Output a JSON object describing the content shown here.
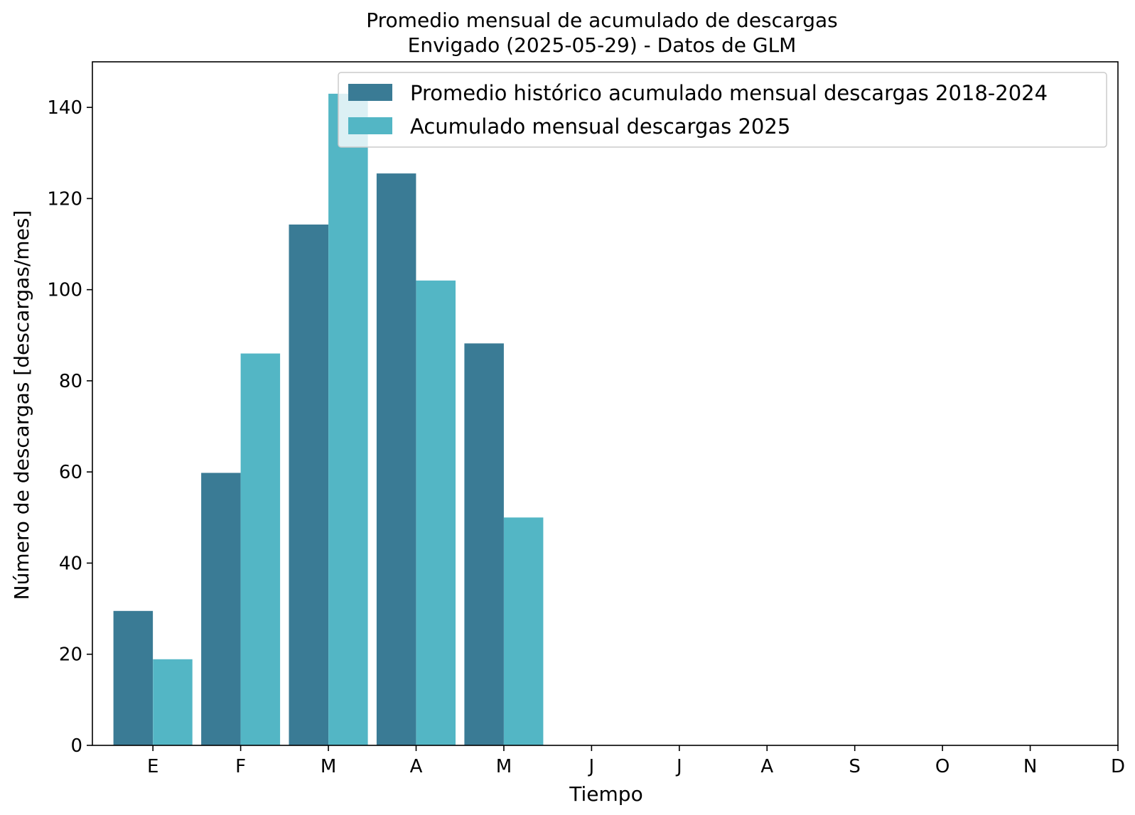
{
  "chart_data": {
    "type": "bar",
    "title": "Promedio mensual de acumulado de descargas",
    "subtitle": "Envigado (2025-05-29) - Datos de GLM",
    "xlabel": "Tiempo",
    "ylabel": "Número de descargas [descargas/mes]",
    "categories": [
      "E",
      "F",
      "M",
      "A",
      "M",
      "J",
      "J",
      "A",
      "S",
      "O",
      "N",
      "D"
    ],
    "ylim": [
      0,
      150
    ],
    "yticks": [
      0,
      20,
      40,
      60,
      80,
      100,
      120,
      140
    ],
    "grid": false,
    "legend_position": "top-right",
    "series": [
      {
        "name": "Promedio histórico acumulado mensual descargas 2018-2024",
        "color": "#3a7b95",
        "values": [
          29.5,
          59.8,
          114.3,
          125.5,
          88.2,
          null,
          null,
          null,
          null,
          null,
          null,
          null
        ]
      },
      {
        "name": "Acumulado mensual descargas 2025",
        "color": "#53b6c5",
        "values": [
          18.9,
          86.0,
          143.0,
          102.0,
          50.0,
          null,
          null,
          null,
          null,
          null,
          null,
          null
        ]
      }
    ]
  }
}
